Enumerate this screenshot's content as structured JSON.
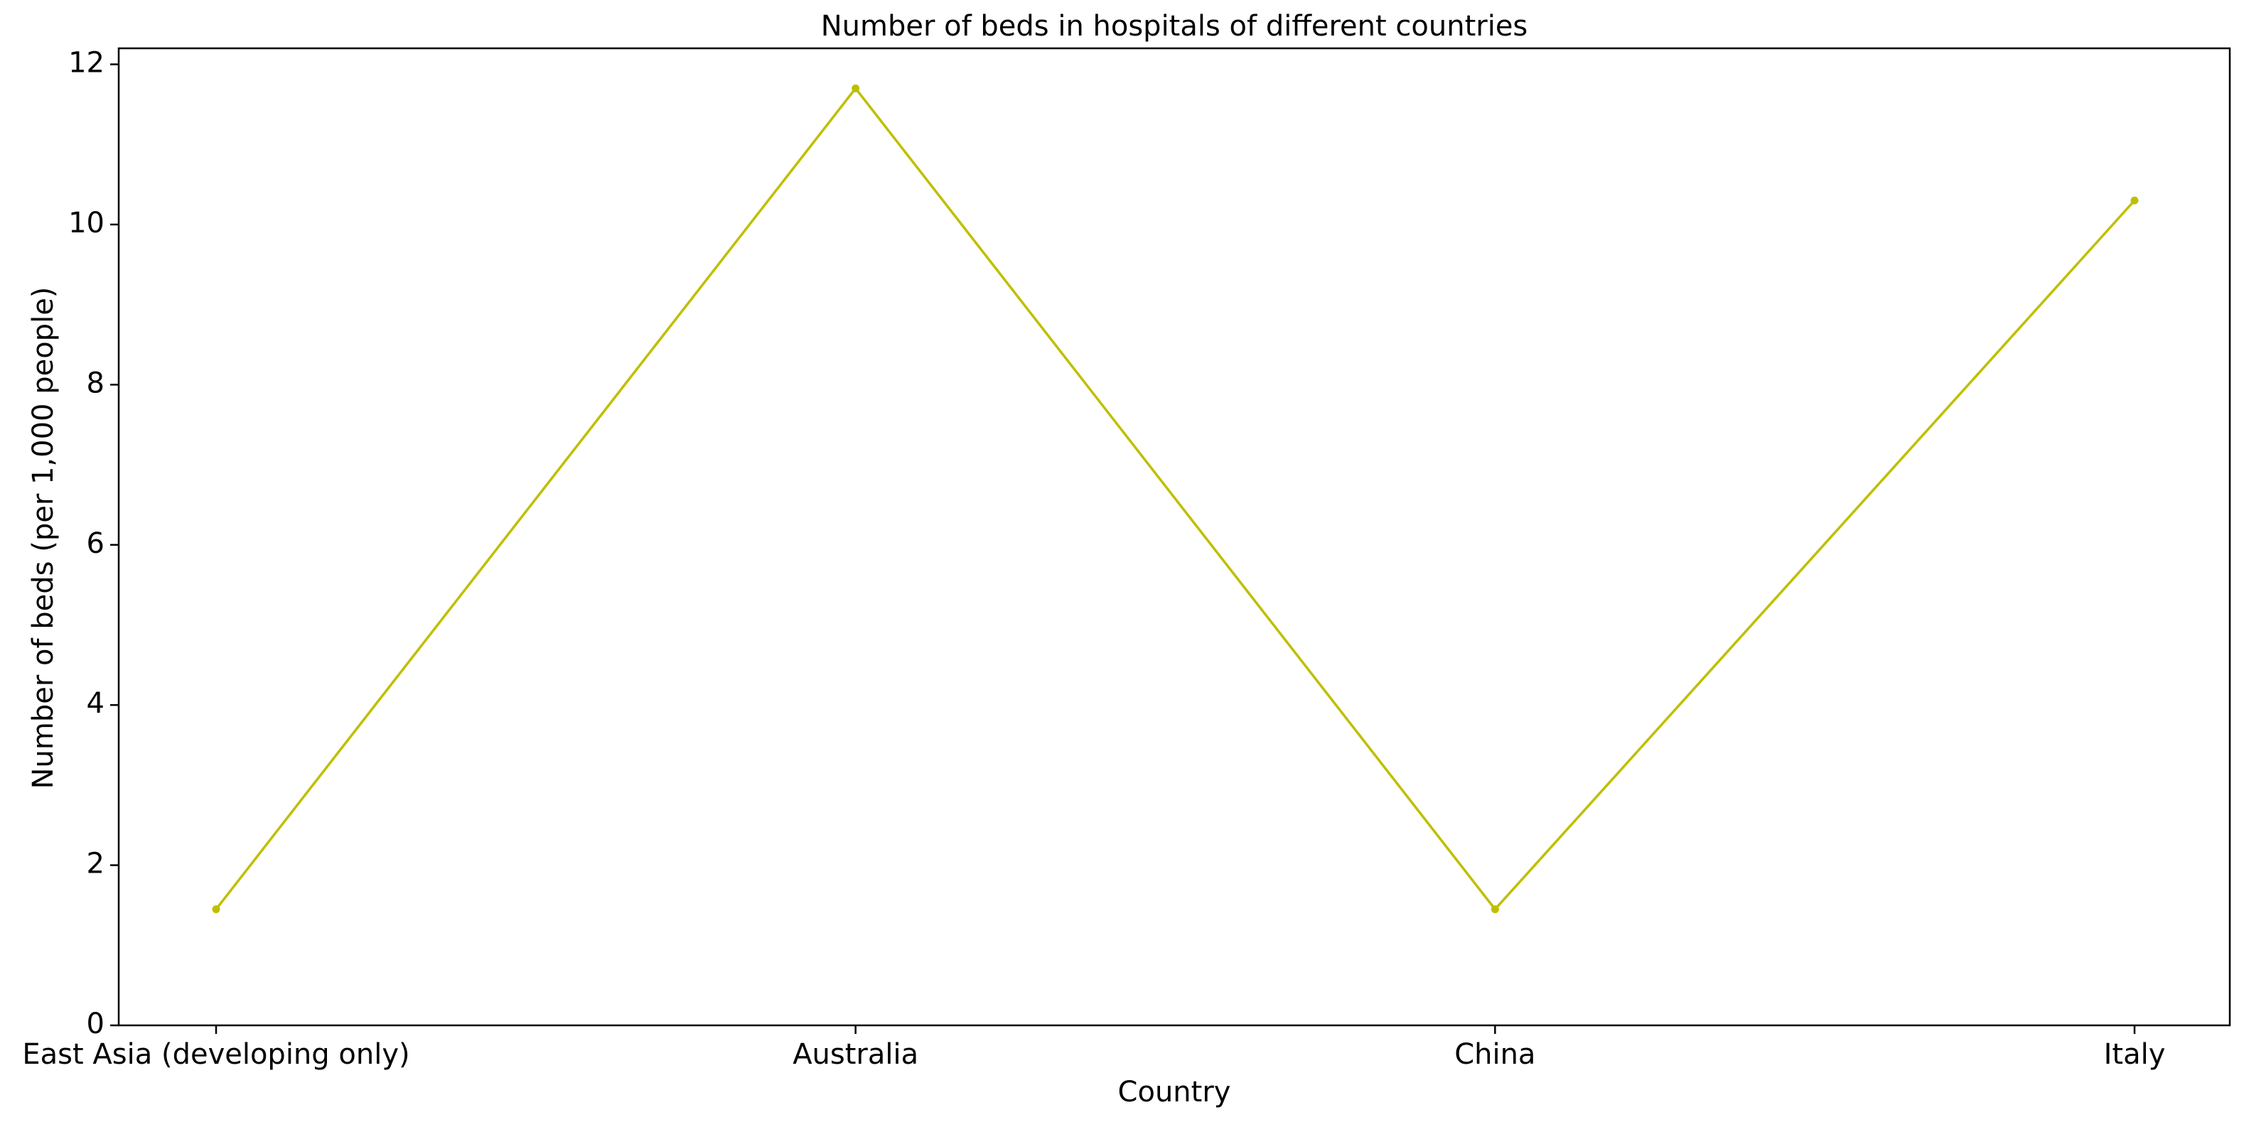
{
  "chart_data": {
    "type": "line",
    "title": "Number of beds in hospitals of different countries",
    "xlabel": "Country",
    "ylabel": "Number of beds (per 1,000 people)",
    "categories": [
      "East Asia (developing only)",
      "Australia",
      "China",
      "Italy"
    ],
    "series": [
      {
        "values": [
          1.45,
          11.7,
          1.45,
          10.3
        ],
        "color": "#bfbf00"
      }
    ],
    "ylim": [
      0,
      12.2
    ],
    "yticks": [
      0,
      2,
      4,
      6,
      8,
      10,
      12
    ],
    "ytick_labels": [
      "0",
      "2",
      "4",
      "6",
      "8",
      "10",
      "12"
    ],
    "grid": false,
    "legend": "none",
    "marker": "point"
  }
}
